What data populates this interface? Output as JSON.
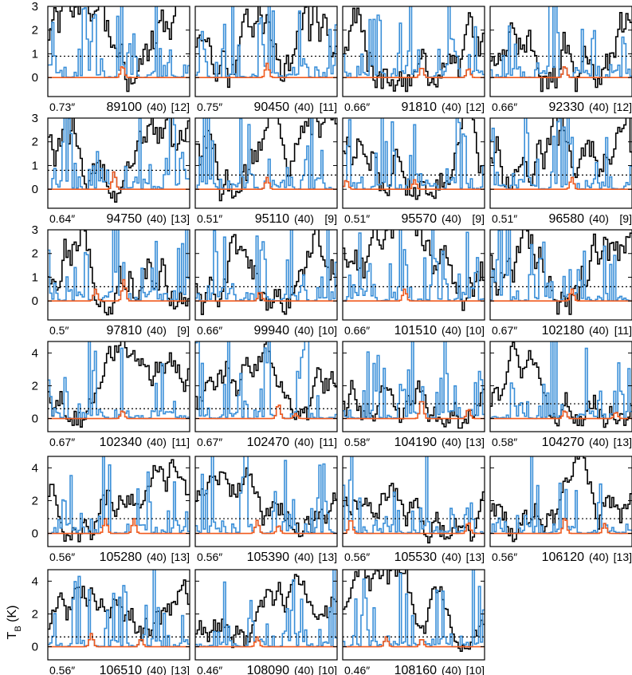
{
  "figure": {
    "ylabel": "T_B (K)",
    "colors": {
      "observed": "#000000",
      "model_total": "#3a8fd8",
      "model_species": "#f05a1e",
      "threshold": "#000000",
      "frame": "#000000"
    },
    "line_styles": {
      "observed": "histogram",
      "model_total": "histogram",
      "model_species": "histogram",
      "threshold": "dotted"
    }
  },
  "chart_data": [
    {
      "type": "line",
      "panel": "89100",
      "ylim": [
        -0.8,
        3
      ],
      "yticks": [
        0,
        1,
        2,
        3
      ],
      "beam": "0.73″",
      "freq": "89100",
      "width": "(40)",
      "ref": "[12]",
      "threshold": 0.9,
      "peaks": [
        [
          0.52,
          0.5
        ]
      ],
      "seed": 1
    },
    {
      "type": "line",
      "panel": "90450",
      "ylim": [
        -0.8,
        3
      ],
      "yticks": [
        0,
        1,
        2,
        3
      ],
      "beam": "0.75″",
      "freq": "90450",
      "width": "(40)",
      "ref": "[11]",
      "threshold": 0.9,
      "peaks": [
        [
          0.5,
          0.6
        ]
      ],
      "seed": 2
    },
    {
      "type": "line",
      "panel": "91810",
      "ylim": [
        -0.8,
        3
      ],
      "yticks": [
        0,
        1,
        2,
        3
      ],
      "beam": "0.66″",
      "freq": "91810",
      "width": "(40)",
      "ref": "[12]",
      "threshold": 0.9,
      "peaks": [
        [
          0.55,
          0.45
        ],
        [
          0.88,
          0.4
        ]
      ],
      "seed": 3
    },
    {
      "type": "line",
      "panel": "92330",
      "ylim": [
        -0.8,
        3
      ],
      "yticks": [
        0,
        1,
        2,
        3
      ],
      "beam": "0.66″",
      "freq": "92330",
      "width": "(40)",
      "ref": "[12]",
      "threshold": 0.9,
      "peaks": [
        [
          0.52,
          0.5
        ]
      ],
      "seed": 4
    },
    {
      "type": "line",
      "panel": "94750",
      "ylim": [
        -0.8,
        3
      ],
      "yticks": [
        0,
        1,
        2,
        3
      ],
      "beam": "0.64″",
      "freq": "94750",
      "width": "(40)",
      "ref": "[13]",
      "threshold": 0.8,
      "peaks": [
        [
          0.46,
          0.75
        ]
      ],
      "seed": 5
    },
    {
      "type": "line",
      "panel": "95110",
      "ylim": [
        -0.8,
        3
      ],
      "yticks": [
        0,
        1,
        2,
        3
      ],
      "beam": "0.51″",
      "freq": "95110",
      "width": "(40)",
      "ref": "[9]",
      "threshold": 0.6,
      "peaks": [
        [
          0.5,
          0.5
        ]
      ],
      "seed": 6
    },
    {
      "type": "line",
      "panel": "95570",
      "ylim": [
        -0.8,
        3
      ],
      "yticks": [
        0,
        1,
        2,
        3
      ],
      "beam": "0.51″",
      "freq": "95570",
      "width": "(40)",
      "ref": "[9]",
      "threshold": 0.6,
      "peaks": [
        [
          0.02,
          0.4
        ],
        [
          0.5,
          0.4
        ]
      ],
      "seed": 7
    },
    {
      "type": "line",
      "panel": "96580",
      "ylim": [
        -0.8,
        3
      ],
      "yticks": [
        0,
        1,
        2,
        3
      ],
      "beam": "0.51″",
      "freq": "96580",
      "width": "(40)",
      "ref": "[9]",
      "threshold": 0.6,
      "peaks": [
        [
          0.57,
          0.5
        ]
      ],
      "seed": 8
    },
    {
      "type": "line",
      "panel": "97810",
      "ylim": [
        -0.8,
        3
      ],
      "yticks": [
        0,
        1,
        2,
        3
      ],
      "beam": "0.5″",
      "freq": "97810",
      "width": "(40)",
      "ref": "[9]",
      "threshold": 0.6,
      "peaks": [
        [
          0.33,
          0.5
        ],
        [
          0.53,
          0.9
        ]
      ],
      "seed": 9
    },
    {
      "type": "line",
      "panel": "99940",
      "ylim": [
        -0.8,
        3
      ],
      "yticks": [
        0,
        1,
        2,
        3
      ],
      "beam": "0.66″",
      "freq": "99940",
      "width": "(40)",
      "ref": "[10]",
      "threshold": 0.6,
      "peaks": [
        [
          0.45,
          0.4
        ]
      ],
      "seed": 10
    },
    {
      "type": "line",
      "panel": "101510",
      "ylim": [
        -0.8,
        3
      ],
      "yticks": [
        0,
        1,
        2,
        3
      ],
      "beam": "0.66″",
      "freq": "101510",
      "width": "(40)",
      "ref": "[10]",
      "threshold": 0.6,
      "peaks": [
        [
          0.43,
          0.5
        ]
      ],
      "seed": 11
    },
    {
      "type": "line",
      "panel": "102180",
      "ylim": [
        -0.8,
        3
      ],
      "yticks": [
        0,
        1,
        2,
        3
      ],
      "beam": "0.67″",
      "freq": "102180",
      "width": "(40)",
      "ref": "[11]",
      "threshold": 0.6,
      "peaks": [
        [
          0.57,
          0.5
        ]
      ],
      "seed": 12
    },
    {
      "type": "line",
      "panel": "102340",
      "ylim": [
        -0.8,
        4.7
      ],
      "yticks": [
        0,
        2,
        4
      ],
      "beam": "0.67″",
      "freq": "102340",
      "width": "(40)",
      "ref": "[11]",
      "threshold": 0.6,
      "peaks": [
        [
          0.52,
          0.5
        ]
      ],
      "seed": 13
    },
    {
      "type": "line",
      "panel": "102470",
      "ylim": [
        -0.8,
        4.7
      ],
      "yticks": [
        0,
        2,
        4
      ],
      "beam": "0.67″",
      "freq": "102470",
      "width": "(40)",
      "ref": "[11]",
      "threshold": 0.6,
      "peaks": [
        [
          0.58,
          0.9
        ],
        [
          0.7,
          0.3
        ]
      ],
      "seed": 14
    },
    {
      "type": "line",
      "panel": "104190",
      "ylim": [
        -0.8,
        4.7
      ],
      "yticks": [
        0,
        2,
        4
      ],
      "beam": "0.58″",
      "freq": "104190",
      "width": "(40)",
      "ref": "[13]",
      "threshold": 0.9,
      "peaks": [
        [
          0.55,
          1.2
        ],
        [
          0.88,
          0.6
        ]
      ],
      "seed": 15
    },
    {
      "type": "line",
      "panel": "104270",
      "ylim": [
        -0.8,
        4.7
      ],
      "yticks": [
        0,
        2,
        4
      ],
      "beam": "0.58″",
      "freq": "104270",
      "width": "(40)",
      "ref": "[13]",
      "threshold": 0.9,
      "peaks": [
        [
          0.52,
          0.5
        ],
        [
          0.88,
          0.4
        ]
      ],
      "seed": 16
    },
    {
      "type": "line",
      "panel": "105280",
      "ylim": [
        -0.8,
        4.7
      ],
      "yticks": [
        0,
        2,
        4
      ],
      "beam": "0.56″",
      "freq": "105280",
      "width": "(40)",
      "ref": "[13]",
      "threshold": 0.9,
      "peaks": [
        [
          0.4,
          0.9
        ],
        [
          0.6,
          0.9
        ]
      ],
      "seed": 17
    },
    {
      "type": "line",
      "panel": "105390",
      "ylim": [
        -0.8,
        4.7
      ],
      "yticks": [
        0,
        2,
        4
      ],
      "beam": "0.56″",
      "freq": "105390",
      "width": "(40)",
      "ref": "[13]",
      "threshold": 0.9,
      "peaks": [
        [
          0.43,
          0.8
        ],
        [
          0.58,
          0.5
        ]
      ],
      "seed": 18
    },
    {
      "type": "line",
      "panel": "105530",
      "ylim": [
        -0.8,
        4.7
      ],
      "yticks": [
        0,
        2,
        4
      ],
      "beam": "0.56″",
      "freq": "105530",
      "width": "(40)",
      "ref": "[13]",
      "threshold": 0.9,
      "peaks": [
        [
          0.05,
          0.9
        ],
        [
          0.88,
          0.7
        ]
      ],
      "seed": 19
    },
    {
      "type": "line",
      "panel": "106120",
      "ylim": [
        -0.8,
        4.7
      ],
      "yticks": [
        0,
        2,
        4
      ],
      "beam": "0.56″",
      "freq": "106120",
      "width": "(40)",
      "ref": "[13]",
      "threshold": 0.9,
      "peaks": [
        [
          0.52,
          1.0
        ],
        [
          0.8,
          0.6
        ]
      ],
      "seed": 20
    },
    {
      "type": "line",
      "panel": "106510",
      "ylim": [
        -0.8,
        4.7
      ],
      "yticks": [
        0,
        2,
        4
      ],
      "beam": "0.56″",
      "freq": "106510",
      "width": "(40)",
      "ref": "[13]",
      "threshold": 0.6,
      "peaks": [
        [
          0.3,
          0.8
        ],
        [
          0.65,
          0.5
        ]
      ],
      "seed": 21
    },
    {
      "type": "line",
      "panel": "108090",
      "ylim": [
        -0.8,
        4.7
      ],
      "yticks": [
        0,
        2,
        4
      ],
      "beam": "0.46″",
      "freq": "108090",
      "width": "(40)",
      "ref": "[10]",
      "threshold": 0.6,
      "peaks": [
        [
          0.43,
          0.6
        ]
      ],
      "seed": 22
    },
    {
      "type": "line",
      "panel": "108160",
      "ylim": [
        -0.8,
        4.7
      ],
      "yticks": [
        0,
        2,
        4
      ],
      "beam": "0.46″",
      "freq": "108160",
      "width": "(40)",
      "ref": "[10]",
      "threshold": 0.6,
      "peaks": [
        [
          0.3,
          0.6
        ],
        [
          0.55,
          0.5
        ]
      ],
      "seed": 23
    }
  ]
}
